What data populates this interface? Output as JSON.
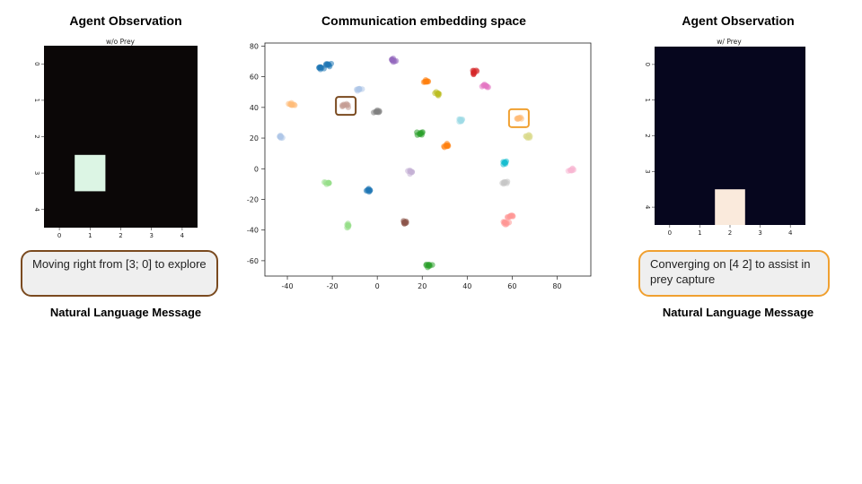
{
  "left_panel": {
    "title": "Agent Observation",
    "plot_title": "w/o Prey",
    "ticks_x": [
      "0",
      "1",
      "2",
      "3",
      "4"
    ],
    "ticks_y": [
      "0",
      "1",
      "2",
      "3",
      "4"
    ],
    "background_color": "#0b0707",
    "cell_color": "#dcf5e4",
    "highlighted_cell": {
      "row": 3,
      "col": 1
    },
    "message": "Moving right from [3; 0] to explore",
    "message_label": "Natural Language Message",
    "border_color": "#7a4a1f"
  },
  "center_panel": {
    "title": "Communication embedding space",
    "chart_data": {
      "type": "scatter",
      "xlim": [
        -50,
        95
      ],
      "ylim": [
        -70,
        82
      ],
      "x_ticks": [
        -40,
        -20,
        0,
        20,
        40,
        60,
        80
      ],
      "y_ticks": [
        -60,
        -40,
        -20,
        0,
        20,
        40,
        60,
        80
      ],
      "x_tick_labels": [
        "-40",
        "-20",
        "0",
        "20",
        "40",
        "60",
        "80"
      ],
      "y_tick_labels": [
        "-60",
        "-40",
        "-20",
        "0",
        "20",
        "40",
        "60",
        "80"
      ],
      "clusters": [
        {
          "x": -25,
          "y": 66,
          "color": "#1f77b4"
        },
        {
          "x": -22,
          "y": 68,
          "color": "#1f77b4"
        },
        {
          "x": 7,
          "y": 71,
          "color": "#9467bd"
        },
        {
          "x": 22,
          "y": 57,
          "color": "#ff7f0e"
        },
        {
          "x": 43,
          "y": 63,
          "color": "#d62728"
        },
        {
          "x": 48,
          "y": 54,
          "color": "#e377c2"
        },
        {
          "x": 27,
          "y": 49,
          "color": "#bcbd22"
        },
        {
          "x": -8,
          "y": 52,
          "color": "#aec7e8"
        },
        {
          "x": -38,
          "y": 42,
          "color": "#ffbb78"
        },
        {
          "x": -14,
          "y": 41,
          "color": "#c49c94"
        },
        {
          "x": 0,
          "y": 37,
          "color": "#7f7f7f"
        },
        {
          "x": 37,
          "y": 32,
          "color": "#9edae5"
        },
        {
          "x": 63,
          "y": 33,
          "color": "#ffbb78"
        },
        {
          "x": -43,
          "y": 21,
          "color": "#aec7e8"
        },
        {
          "x": 19,
          "y": 23,
          "color": "#2ca02c"
        },
        {
          "x": 67,
          "y": 21,
          "color": "#dbdb8d"
        },
        {
          "x": 31,
          "y": 15,
          "color": "#ff7f0e"
        },
        {
          "x": 57,
          "y": 4,
          "color": "#17becf"
        },
        {
          "x": 86,
          "y": -1,
          "color": "#f7b6d2"
        },
        {
          "x": 15,
          "y": -2,
          "color": "#c5b0d5"
        },
        {
          "x": -22,
          "y": -9,
          "color": "#98df8a"
        },
        {
          "x": 57,
          "y": -9,
          "color": "#c7c7c7"
        },
        {
          "x": -4,
          "y": -14,
          "color": "#1f77b4"
        },
        {
          "x": 59,
          "y": -31,
          "color": "#ff9896"
        },
        {
          "x": 57,
          "y": -35,
          "color": "#ff9896"
        },
        {
          "x": -13,
          "y": -37,
          "color": "#98df8a"
        },
        {
          "x": 12,
          "y": -35,
          "color": "#8c564b"
        },
        {
          "x": 23,
          "y": -63,
          "color": "#2ca02c"
        }
      ],
      "highlights": [
        {
          "x": -14,
          "y": 41,
          "color": "#7a4a1f"
        },
        {
          "x": 63,
          "y": 33,
          "color": "#f0a030"
        }
      ]
    }
  },
  "right_panel": {
    "title": "Agent Observation",
    "plot_title": "w/ Prey",
    "ticks_x": [
      "0",
      "1",
      "2",
      "3",
      "4"
    ],
    "ticks_y": [
      "0",
      "1",
      "2",
      "3",
      "4"
    ],
    "background_color": "#06061e",
    "cell_color": "#faeadc",
    "highlighted_cell": {
      "row": 4,
      "col": 2
    },
    "message": "Converging on [4 2] to assist in prey capture",
    "message_label": "Natural Language Message",
    "border_color": "#f0a030"
  }
}
